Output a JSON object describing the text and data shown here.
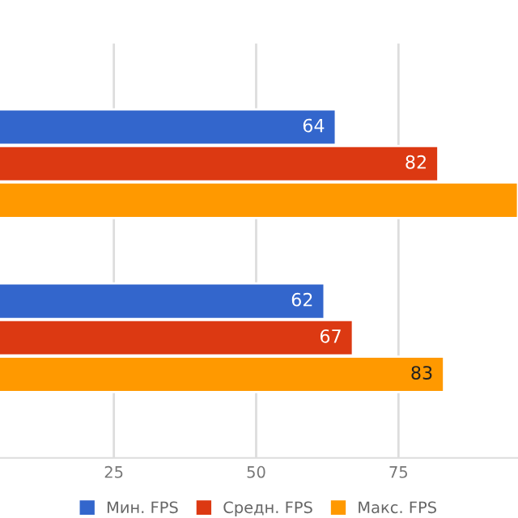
{
  "chart_data": {
    "type": "bar",
    "orientation": "horizontal",
    "categories": [
      null,
      null
    ],
    "series": [
      {
        "name": "Мин. FPS",
        "color": "#3366cc",
        "values": [
          64,
          62
        ],
        "value_labels": [
          "64",
          "62"
        ]
      },
      {
        "name": "Средн. FPS",
        "color": "#dc3912",
        "values": [
          82,
          67
        ],
        "value_labels": [
          "82",
          "67"
        ]
      },
      {
        "name": "Макс. FPS",
        "color": "#ff9900",
        "values": [
          96,
          83
        ],
        "value_labels": [
          null,
          "83"
        ]
      }
    ],
    "xlim": [
      5,
      96
    ],
    "xticks": [
      25,
      50,
      75
    ],
    "grid": "x",
    "legend": "bottom"
  }
}
